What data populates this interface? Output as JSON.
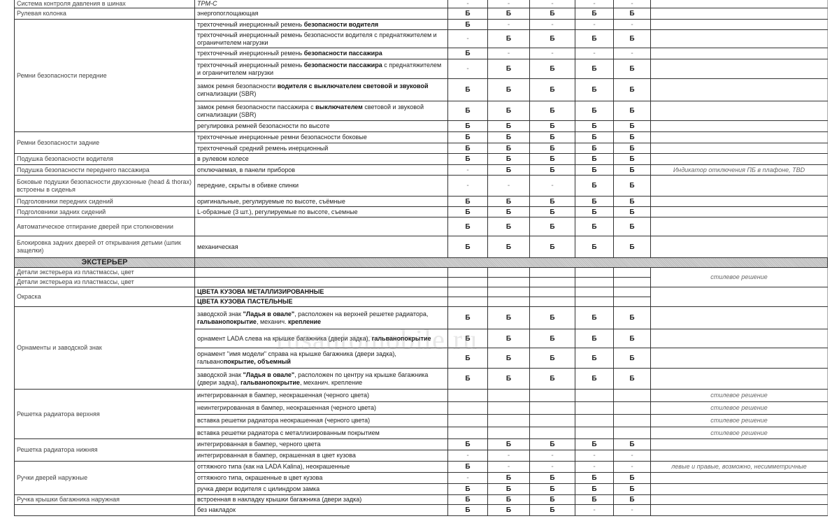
{
  "watermark": "rusautomobile.ru",
  "rows": [
    {
      "feature": "Система контроля давления в шинах",
      "desc": [
        {
          "t": "TPM-C",
          "i": true
        }
      ],
      "values": [
        "-",
        "-",
        "-",
        "-",
        "-"
      ],
      "note": ""
    },
    {
      "feature": "Рулевая колонка",
      "desc": [
        {
          "t": "энергопоглощающая"
        }
      ],
      "values": [
        "Б",
        "Б",
        "Б",
        "Б",
        "Б"
      ],
      "note": ""
    },
    {
      "feature": "Ремни безопасности передние",
      "feature_span": 7,
      "desc": [
        {
          "t": "трехточечный инерционный ремень "
        },
        {
          "t": "безопасности водителя",
          "b": true
        }
      ],
      "values": [
        "Б",
        "-",
        "-",
        "-",
        "-"
      ],
      "note": ""
    },
    {
      "desc": [
        {
          "t": "трехточечный инерционный ремень безопасности водителя с преднатяжителем и ограничителем нагрузки"
        }
      ],
      "values": [
        "-",
        "Б",
        "Б",
        "Б",
        "Б"
      ],
      "note": ""
    },
    {
      "desc": [
        {
          "t": "трехточечный инерционный ремень "
        },
        {
          "t": "безопасности пассажира",
          "b": true
        }
      ],
      "values": [
        "Б",
        "-",
        "-",
        "-",
        "-"
      ],
      "note": ""
    },
    {
      "desc": [
        {
          "t": "трехточечный инерционный ремень "
        },
        {
          "t": "безопасности пассажира",
          "b": true
        },
        {
          "t": " с преднатяжителем и ограничителем нагрузки"
        }
      ],
      "values": [
        "-",
        "Б",
        "Б",
        "Б",
        "Б"
      ],
      "note": ""
    },
    {
      "desc": [
        {
          "t": "замок ремня безопасности "
        },
        {
          "t": "водителя с выключателем световой и звуковой",
          "b": true
        },
        {
          "t": " сигнализации (SBR)"
        }
      ],
      "values": [
        "Б",
        "Б",
        "Б",
        "Б",
        "Б"
      ],
      "note": ""
    },
    {
      "desc": [
        {
          "t": "замок ремня безопасности пассажира с "
        },
        {
          "t": "выключателем",
          "b": true
        },
        {
          "t": " световой и звуковой сигнализации (SBR)"
        }
      ],
      "values": [
        "Б",
        "Б",
        "Б",
        "Б",
        "Б"
      ],
      "note": ""
    },
    {
      "desc": [
        {
          "t": "регулировка ремней безопасности по высоте"
        }
      ],
      "values": [
        "Б",
        "Б",
        "Б",
        "Б",
        "Б"
      ],
      "note": ""
    },
    {
      "feature": "Ремни безопасности задние",
      "feature_span": 2,
      "desc": [
        {
          "t": "трехточечные инерционные ремни безопасности боковые"
        }
      ],
      "values": [
        "Б",
        "Б",
        "Б",
        "Б",
        "Б"
      ],
      "note": ""
    },
    {
      "desc": [
        {
          "t": "трехточечный средний ремень инерционный"
        }
      ],
      "values": [
        "Б",
        "Б",
        "Б",
        "Б",
        "Б"
      ],
      "note": ""
    },
    {
      "feature": "Подушка безопасности водителя",
      "desc": [
        {
          "t": "в рулевом колесе"
        }
      ],
      "values": [
        "Б",
        "Б",
        "Б",
        "Б",
        "Б"
      ],
      "note": ""
    },
    {
      "feature": "Подушка безопасности переднего пассажира",
      "desc": [
        {
          "t": "отключаемая, в панели приборов"
        }
      ],
      "values": [
        "-",
        "Б",
        "Б",
        "Б",
        "Б"
      ],
      "note": "Индикатор отключения ПБ в плафоне, TBD"
    },
    {
      "feature": "Боковые подушки безопасности двухзонные (head & thorax) встроены в сиденья",
      "desc": [
        {
          "t": "передние, скрыты в обивке спинки"
        }
      ],
      "values": [
        "-",
        "-",
        "-",
        "Б",
        "Б"
      ],
      "note": ""
    },
    {
      "feature": "Подголовники передних сидений",
      "desc": [
        {
          "t": "оригинальные, регулируемые по высоте, съёмные"
        }
      ],
      "values": [
        "Б",
        "Б",
        "Б",
        "Б",
        "Б"
      ],
      "note": ""
    },
    {
      "feature": "Подголовники задних сидений",
      "desc": [
        {
          "t": "L-образные (3 шт.), регулируемые по высоте, съемные"
        }
      ],
      "values": [
        "Б",
        "Б",
        "Б",
        "Б",
        "Б"
      ],
      "note": ""
    },
    {
      "feature": "Автоматическое отпирание дверей при столкновении",
      "desc": [],
      "values": [
        "Б",
        "Б",
        "Б",
        "Б",
        "Б"
      ],
      "note": ""
    },
    {
      "feature": "Блокировка задних дверей от открывания детьми (шпик защелки)",
      "desc": [
        {
          "t": "механическая"
        }
      ],
      "values": [
        "Б",
        "Б",
        "Б",
        "Б",
        "Б"
      ],
      "note": ""
    },
    {
      "section": "ЭКСТЕРЬЕР"
    },
    {
      "feature": "Детали экстерьера из пластмассы, цвет",
      "desc": [],
      "values": [
        "",
        "",
        "",
        "",
        ""
      ],
      "note": "стилевое решение",
      "note_span": 2
    },
    {
      "feature": "Детали экстерьера из пластмассы, цвет",
      "desc": [],
      "values": [
        "",
        "",
        "",
        "",
        ""
      ]
    },
    {
      "feature": "Окраска",
      "feature_span": 2,
      "desc": [
        {
          "t": "ЦВЕТА КУЗОВА МЕТАЛЛИЗИРОВАННЫЕ",
          "b": true
        }
      ],
      "values": [
        "",
        "",
        "",
        "",
        ""
      ],
      "note": "",
      "note_span": 2
    },
    {
      "desc": [
        {
          "t": "ЦВЕТА КУЗОВА ПАСТЕЛЬНЫЕ",
          "b": true
        }
      ],
      "values": [
        "",
        "",
        "",
        "",
        ""
      ]
    },
    {
      "feature": "Орнаменты и заводской знак",
      "feature_span": 4,
      "desc": [
        {
          "t": "заводской знак "
        },
        {
          "t": "\"Ладья в овале\"",
          "b": true
        },
        {
          "t": ", расположен на верхней решетке радиатора, "
        },
        {
          "t": "гальванопокрытие",
          "b": true
        },
        {
          "t": ", механич. "
        },
        {
          "t": "крепление",
          "b": true
        }
      ],
      "values": [
        "Б",
        "Б",
        "Б",
        "Б",
        "Б"
      ],
      "note": ""
    },
    {
      "desc": [
        {
          "t": "орнамент LADA слева на крышке багажника (двери задка), "
        },
        {
          "t": "гальванопокрытие",
          "b": true
        }
      ],
      "values": [
        "Б",
        "Б",
        "Б",
        "Б",
        "Б"
      ],
      "note": ""
    },
    {
      "desc": [
        {
          "t": "орнамент \"имя модели\" справа на крышке багажника (двери задка), гальвано"
        },
        {
          "t": "покрытие, объемный",
          "b": true
        }
      ],
      "values": [
        "Б",
        "Б",
        "Б",
        "Б",
        "Б"
      ],
      "note": ""
    },
    {
      "desc": [
        {
          "t": "заводской знак "
        },
        {
          "t": "\"Ладья в овале\"",
          "b": true
        },
        {
          "t": ", расположен по центру на крышке багажника (двери задка), "
        },
        {
          "t": "гальванопокрытие",
          "b": true
        },
        {
          "t": ", механич. крепление"
        }
      ],
      "values": [
        "Б",
        "Б",
        "Б",
        "Б",
        "Б"
      ],
      "note": ""
    },
    {
      "feature": "Решетка радиатора верхняя",
      "feature_span": 4,
      "desc": [
        {
          "t": "интегрированная в бампер, неокрашенная (черного цвета)"
        }
      ],
      "values": [
        "",
        "",
        "",
        "",
        ""
      ],
      "note": "стилевое решение"
    },
    {
      "desc": [
        {
          "t": "неинтегрированная в бампер, неокрашенная (черного цвета)"
        }
      ],
      "values": [
        "",
        "",
        "",
        "",
        ""
      ],
      "note": "стилевое решение"
    },
    {
      "desc": [
        {
          "t": "вставка решетки радиатора неокрашенная (черного цвета)"
        }
      ],
      "values": [
        "",
        "",
        "",
        "",
        ""
      ],
      "note": "стилевое решение"
    },
    {
      "desc": [
        {
          "t": "вставка решетки радиатора с металлизированным покрытием"
        }
      ],
      "values": [
        "",
        "",
        "",
        "",
        ""
      ],
      "note": "стилевое решение"
    },
    {
      "feature": "Решетка радиатора нижняя",
      "feature_span": 2,
      "desc": [
        {
          "t": "интегрированная в бампер, черного цвета"
        }
      ],
      "values": [
        "Б",
        "Б",
        "Б",
        "Б",
        "Б"
      ],
      "note": ""
    },
    {
      "desc": [
        {
          "t": "интегрированная в бампер, окрашенная в цвет кузова"
        }
      ],
      "values": [
        "-",
        "-",
        "-",
        "-",
        "-"
      ],
      "note": ""
    },
    {
      "feature": "Ручки дверей наружные",
      "feature_span": 3,
      "desc": [
        {
          "t": "оттяжного типа (как на LADA Kalina), неокрашенные"
        }
      ],
      "values": [
        "Б",
        "-",
        "-",
        "-",
        "-"
      ],
      "note": "левые и правые, возможно, несимметричные"
    },
    {
      "desc": [
        {
          "t": "оттяжного типа, окрашенные в цвет кузова"
        }
      ],
      "values": [
        "-",
        "Б",
        "Б",
        "Б",
        "Б"
      ],
      "note": ""
    },
    {
      "desc": [
        {
          "t": "ручка двери водителя с цилиндром замка"
        }
      ],
      "values": [
        "Б",
        "Б",
        "Б",
        "Б",
        "Б"
      ],
      "note": ""
    },
    {
      "feature": "Ручка крышки багажника наружная",
      "desc": [
        {
          "t": "встроенная в накладку крышки багажника (двери задка)"
        }
      ],
      "values": [
        "Б",
        "Б",
        "Б",
        "Б",
        "Б"
      ],
      "note": ""
    },
    {
      "feature": "",
      "desc": [
        {
          "t": "без накладок"
        }
      ],
      "values": [
        "Б",
        "Б",
        "Б",
        "-",
        "-"
      ],
      "note": ""
    }
  ]
}
